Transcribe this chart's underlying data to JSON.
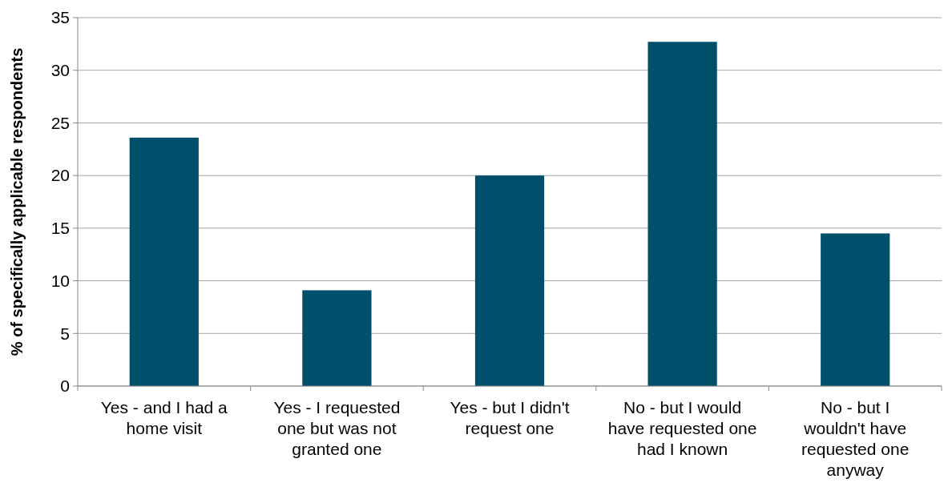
{
  "chart_data": {
    "type": "bar",
    "ylabel": "% of specifically applicable respondents",
    "categories": [
      "Yes - and I had a home visit",
      "Yes - I requested one but was not granted one",
      "Yes - but I didn't request one",
      "No - but I would have requested one had I known",
      "No - but I wouldn't have requested one anyway"
    ],
    "values": [
      23.6,
      9.1,
      20.0,
      32.7,
      14.5
    ],
    "color": "#00506b",
    "ylim": [
      0,
      35
    ],
    "yticks": [
      0,
      5,
      10,
      15,
      20,
      25,
      30,
      35
    ],
    "grid": "y"
  }
}
